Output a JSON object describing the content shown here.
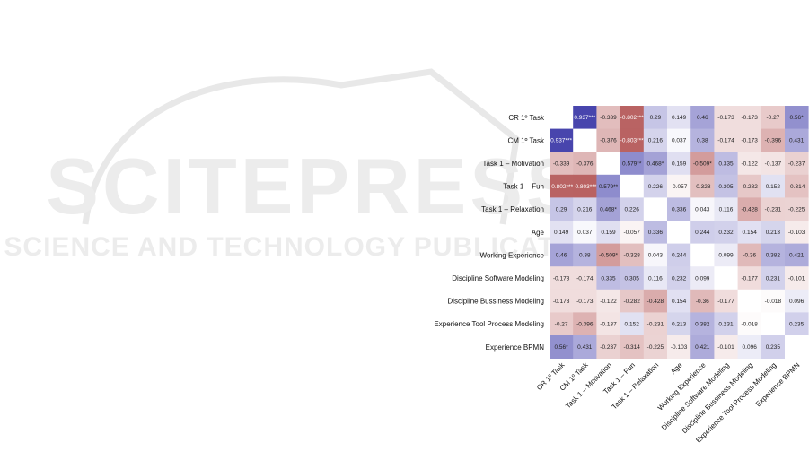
{
  "watermark": {
    "line1": "SCITEPRESS",
    "line2": "SCIENCE AND TECHNOLOGY PUBLICATIONS"
  },
  "chart_data": {
    "type": "heatmap",
    "title": "",
    "xlabel": "",
    "ylabel": "",
    "labels": [
      "CR 1º Task",
      "CM 1º Task",
      "Task 1 – Motivation",
      "Task 1 – Fun",
      "Task 1 – Relaxation",
      "Age",
      "Working Experience",
      "Discipline Software Modeling",
      "Discipline Bussiness Modeling",
      "Experience Tool Process Modeling",
      "Experience BPMN"
    ],
    "cells": [
      [
        "",
        "0.937***",
        "-0.339",
        "-0.802***",
        "0.29",
        "0.149",
        "0.46",
        "-0.173",
        "-0.173",
        "-0.27",
        "0.56*"
      ],
      [
        "0.937***",
        "",
        "-0.376",
        "-0.803***",
        "0.216",
        "0.037",
        "0.38",
        "-0.174",
        "-0.173",
        "-0.396",
        "0.431"
      ],
      [
        "-0.339",
        "-0.376",
        "",
        "0.579**",
        "0.468*",
        "0.159",
        "-0.509*",
        "0.335",
        "-0.122",
        "-0.137",
        "-0.237"
      ],
      [
        "-0.802***",
        "-0.803***",
        "0.579**",
        "",
        "0.226",
        "-0.057",
        "-0.328",
        "0.305",
        "-0.282",
        "0.152",
        "-0.314"
      ],
      [
        "0.29",
        "0.216",
        "0.468*",
        "0.226",
        "",
        "0.336",
        "0.043",
        "0.116",
        "-0.428",
        "-0.231",
        "-0.225"
      ],
      [
        "0.149",
        "0.037",
        "0.159",
        "-0.057",
        "0.336",
        "",
        "0.244",
        "0.232",
        "0.154",
        "0.213",
        "-0.103"
      ],
      [
        "0.46",
        "0.38",
        "-0.509*",
        "-0.328",
        "0.043",
        "0.244",
        "",
        "0.099",
        "-0.36",
        "0.382",
        "0.421"
      ],
      [
        "-0.173",
        "-0.174",
        "0.335",
        "0.305",
        "0.116",
        "0.232",
        "0.099",
        "",
        "-0.177",
        "0.231",
        "-0.101"
      ],
      [
        "-0.173",
        "-0.173",
        "-0.122",
        "-0.282",
        "-0.428",
        "0.154",
        "-0.36",
        "-0.177",
        "",
        "-0.018",
        "0.096"
      ],
      [
        "-0.27",
        "-0.396",
        "-0.137",
        "0.152",
        "-0.231",
        "0.213",
        "0.382",
        "0.231",
        "-0.018",
        "",
        "0.235"
      ],
      [
        "0.56*",
        "0.431",
        "-0.237",
        "-0.314",
        "-0.225",
        "-0.103",
        "0.421",
        "-0.101",
        "0.096",
        "0.235",
        ""
      ]
    ],
    "colors": {
      "positive": "#3c38a8",
      "negative": "#a83c3c",
      "neutral": "#ffffff"
    }
  }
}
